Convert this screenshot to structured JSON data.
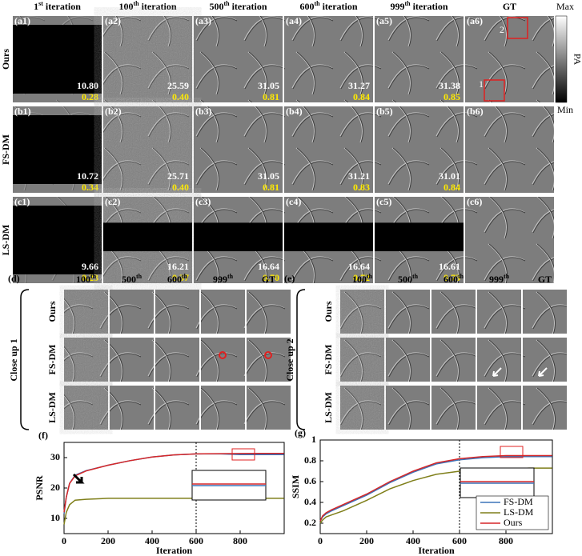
{
  "figure": {
    "col_headers": [
      [
        "1",
        "st",
        " iteration"
      ],
      [
        "100",
        "th",
        " iteration"
      ],
      [
        "500",
        "th",
        " iteration"
      ],
      [
        "600",
        "th",
        " iteration"
      ],
      [
        "999",
        "th",
        " iteration"
      ],
      [
        "GT"
      ]
    ],
    "row_labels": [
      "Ours",
      "FS-DM",
      "LS-DM"
    ],
    "panels": [
      [
        {
          "label": "(a1)",
          "psnr": "10.80",
          "ssim": "0.28"
        },
        {
          "label": "(a2)",
          "psnr": "25.59",
          "ssim": "0.40"
        },
        {
          "label": "(a3)",
          "psnr": "31.05",
          "ssim": "0.81"
        },
        {
          "label": "(a4)",
          "psnr": "31.27",
          "ssim": "0.84"
        },
        {
          "label": "(a5)",
          "psnr": "31.38",
          "ssim": "0.85"
        },
        {
          "label": "(a6)"
        }
      ],
      [
        {
          "label": "(b1)",
          "psnr": "10.72",
          "ssim": "0.34"
        },
        {
          "label": "(b2)",
          "psnr": "25.71",
          "ssim": "0.40"
        },
        {
          "label": "(b3)",
          "psnr": "31.05",
          "ssim": "0.81"
        },
        {
          "label": "(b4)",
          "psnr": "31.21",
          "ssim": "0.83"
        },
        {
          "label": "(b5)",
          "psnr": "31.01",
          "ssim": "0.84"
        },
        {
          "label": "(b6)"
        }
      ],
      [
        {
          "label": "(c1)",
          "psnr": "9.66",
          "ssim": "0.23"
        },
        {
          "label": "(c2)",
          "psnr": "16.21",
          "ssim": "0.37"
        },
        {
          "label": "(c3)",
          "psnr": "16.64",
          "ssim": "0.70"
        },
        {
          "label": "(c4)",
          "psnr": "16.64",
          "ssim": "0.72"
        },
        {
          "label": "(c5)",
          "psnr": "16.61",
          "ssim": "0.73"
        },
        {
          "label": "(c6)"
        }
      ]
    ],
    "gt_markers": [
      "1",
      "2"
    ],
    "colorbar": {
      "max": "Max",
      "title": "PA",
      "min": "Min"
    },
    "closeups": [
      {
        "label": "(d)",
        "title": "Close up 1",
        "col_headers": [
          [
            "100",
            "th"
          ],
          [
            "500",
            "th"
          ],
          [
            "600",
            "th"
          ],
          [
            "999",
            "th"
          ],
          [
            "GT"
          ]
        ],
        "row_labels": [
          "Ours",
          "FS-DM",
          "LS-DM"
        ]
      },
      {
        "label": "(e)",
        "title": "Close up 2",
        "col_headers": [
          [
            "100",
            "th"
          ],
          [
            "500",
            "th"
          ],
          [
            "600",
            "th"
          ],
          [
            "999",
            "th"
          ],
          [
            "GT"
          ]
        ],
        "row_labels": [
          "Ours",
          "FS-DM",
          "LS-DM"
        ]
      }
    ]
  },
  "chart_data": [
    {
      "type": "line",
      "panel_label": "(f)",
      "x_label": "Iteration",
      "y_label": "PSNR",
      "x": [
        0,
        10,
        25,
        50,
        100,
        200,
        300,
        400,
        500,
        600,
        700,
        800,
        900,
        999
      ],
      "xlim": [
        0,
        1000
      ],
      "xticks": [
        0,
        200,
        400,
        600,
        800
      ],
      "ylim": [
        5,
        35
      ],
      "yticks": [
        10,
        20,
        30
      ],
      "vline": 600,
      "legend": false,
      "series": [
        {
          "name": "FS-DM",
          "color": "#3b73b9",
          "values": [
            11.5,
            17,
            21.5,
            24.2,
            25.7,
            27.5,
            29,
            30.2,
            30.9,
            31.2,
            31.25,
            31.0,
            31.0,
            31.0
          ]
        },
        {
          "name": "LS-DM",
          "color": "#7f7f1a",
          "values": [
            8,
            12,
            14.5,
            16,
            16.3,
            16.6,
            16.6,
            16.6,
            16.6,
            16.6,
            16.6,
            16.6,
            16.6,
            16.6
          ]
        },
        {
          "name": "Ours",
          "color": "#d62728",
          "values": [
            12,
            17,
            21.5,
            24,
            25.6,
            27.5,
            29,
            30.2,
            30.9,
            31.2,
            31.3,
            31.35,
            31.4,
            31.4
          ]
        }
      ]
    },
    {
      "type": "line",
      "panel_label": "(g)",
      "x_label": "Iteration",
      "y_label": "SSIM",
      "x": [
        0,
        10,
        25,
        50,
        100,
        200,
        300,
        400,
        500,
        600,
        700,
        800,
        900,
        999
      ],
      "xlim": [
        0,
        1000
      ],
      "xticks": [
        0,
        200,
        400,
        600,
        800
      ],
      "ylim": [
        0.1,
        1
      ],
      "yticks": [
        0.2,
        0.4,
        0.6,
        0.8,
        1
      ],
      "vline": 600,
      "legend": "lower right",
      "series": [
        {
          "name": "FS-DM",
          "color": "#3b73b9",
          "values": [
            0.22,
            0.26,
            0.29,
            0.32,
            0.37,
            0.47,
            0.59,
            0.69,
            0.77,
            0.81,
            0.83,
            0.84,
            0.84,
            0.84
          ]
        },
        {
          "name": "LS-DM",
          "color": "#7f7f1a",
          "values": [
            0.2,
            0.23,
            0.26,
            0.28,
            0.32,
            0.42,
            0.53,
            0.61,
            0.67,
            0.7,
            0.72,
            0.72,
            0.73,
            0.73
          ]
        },
        {
          "name": "Ours",
          "color": "#d62728",
          "values": [
            0.22,
            0.27,
            0.3,
            0.33,
            0.38,
            0.48,
            0.6,
            0.7,
            0.78,
            0.82,
            0.84,
            0.85,
            0.85,
            0.85
          ]
        }
      ]
    }
  ]
}
